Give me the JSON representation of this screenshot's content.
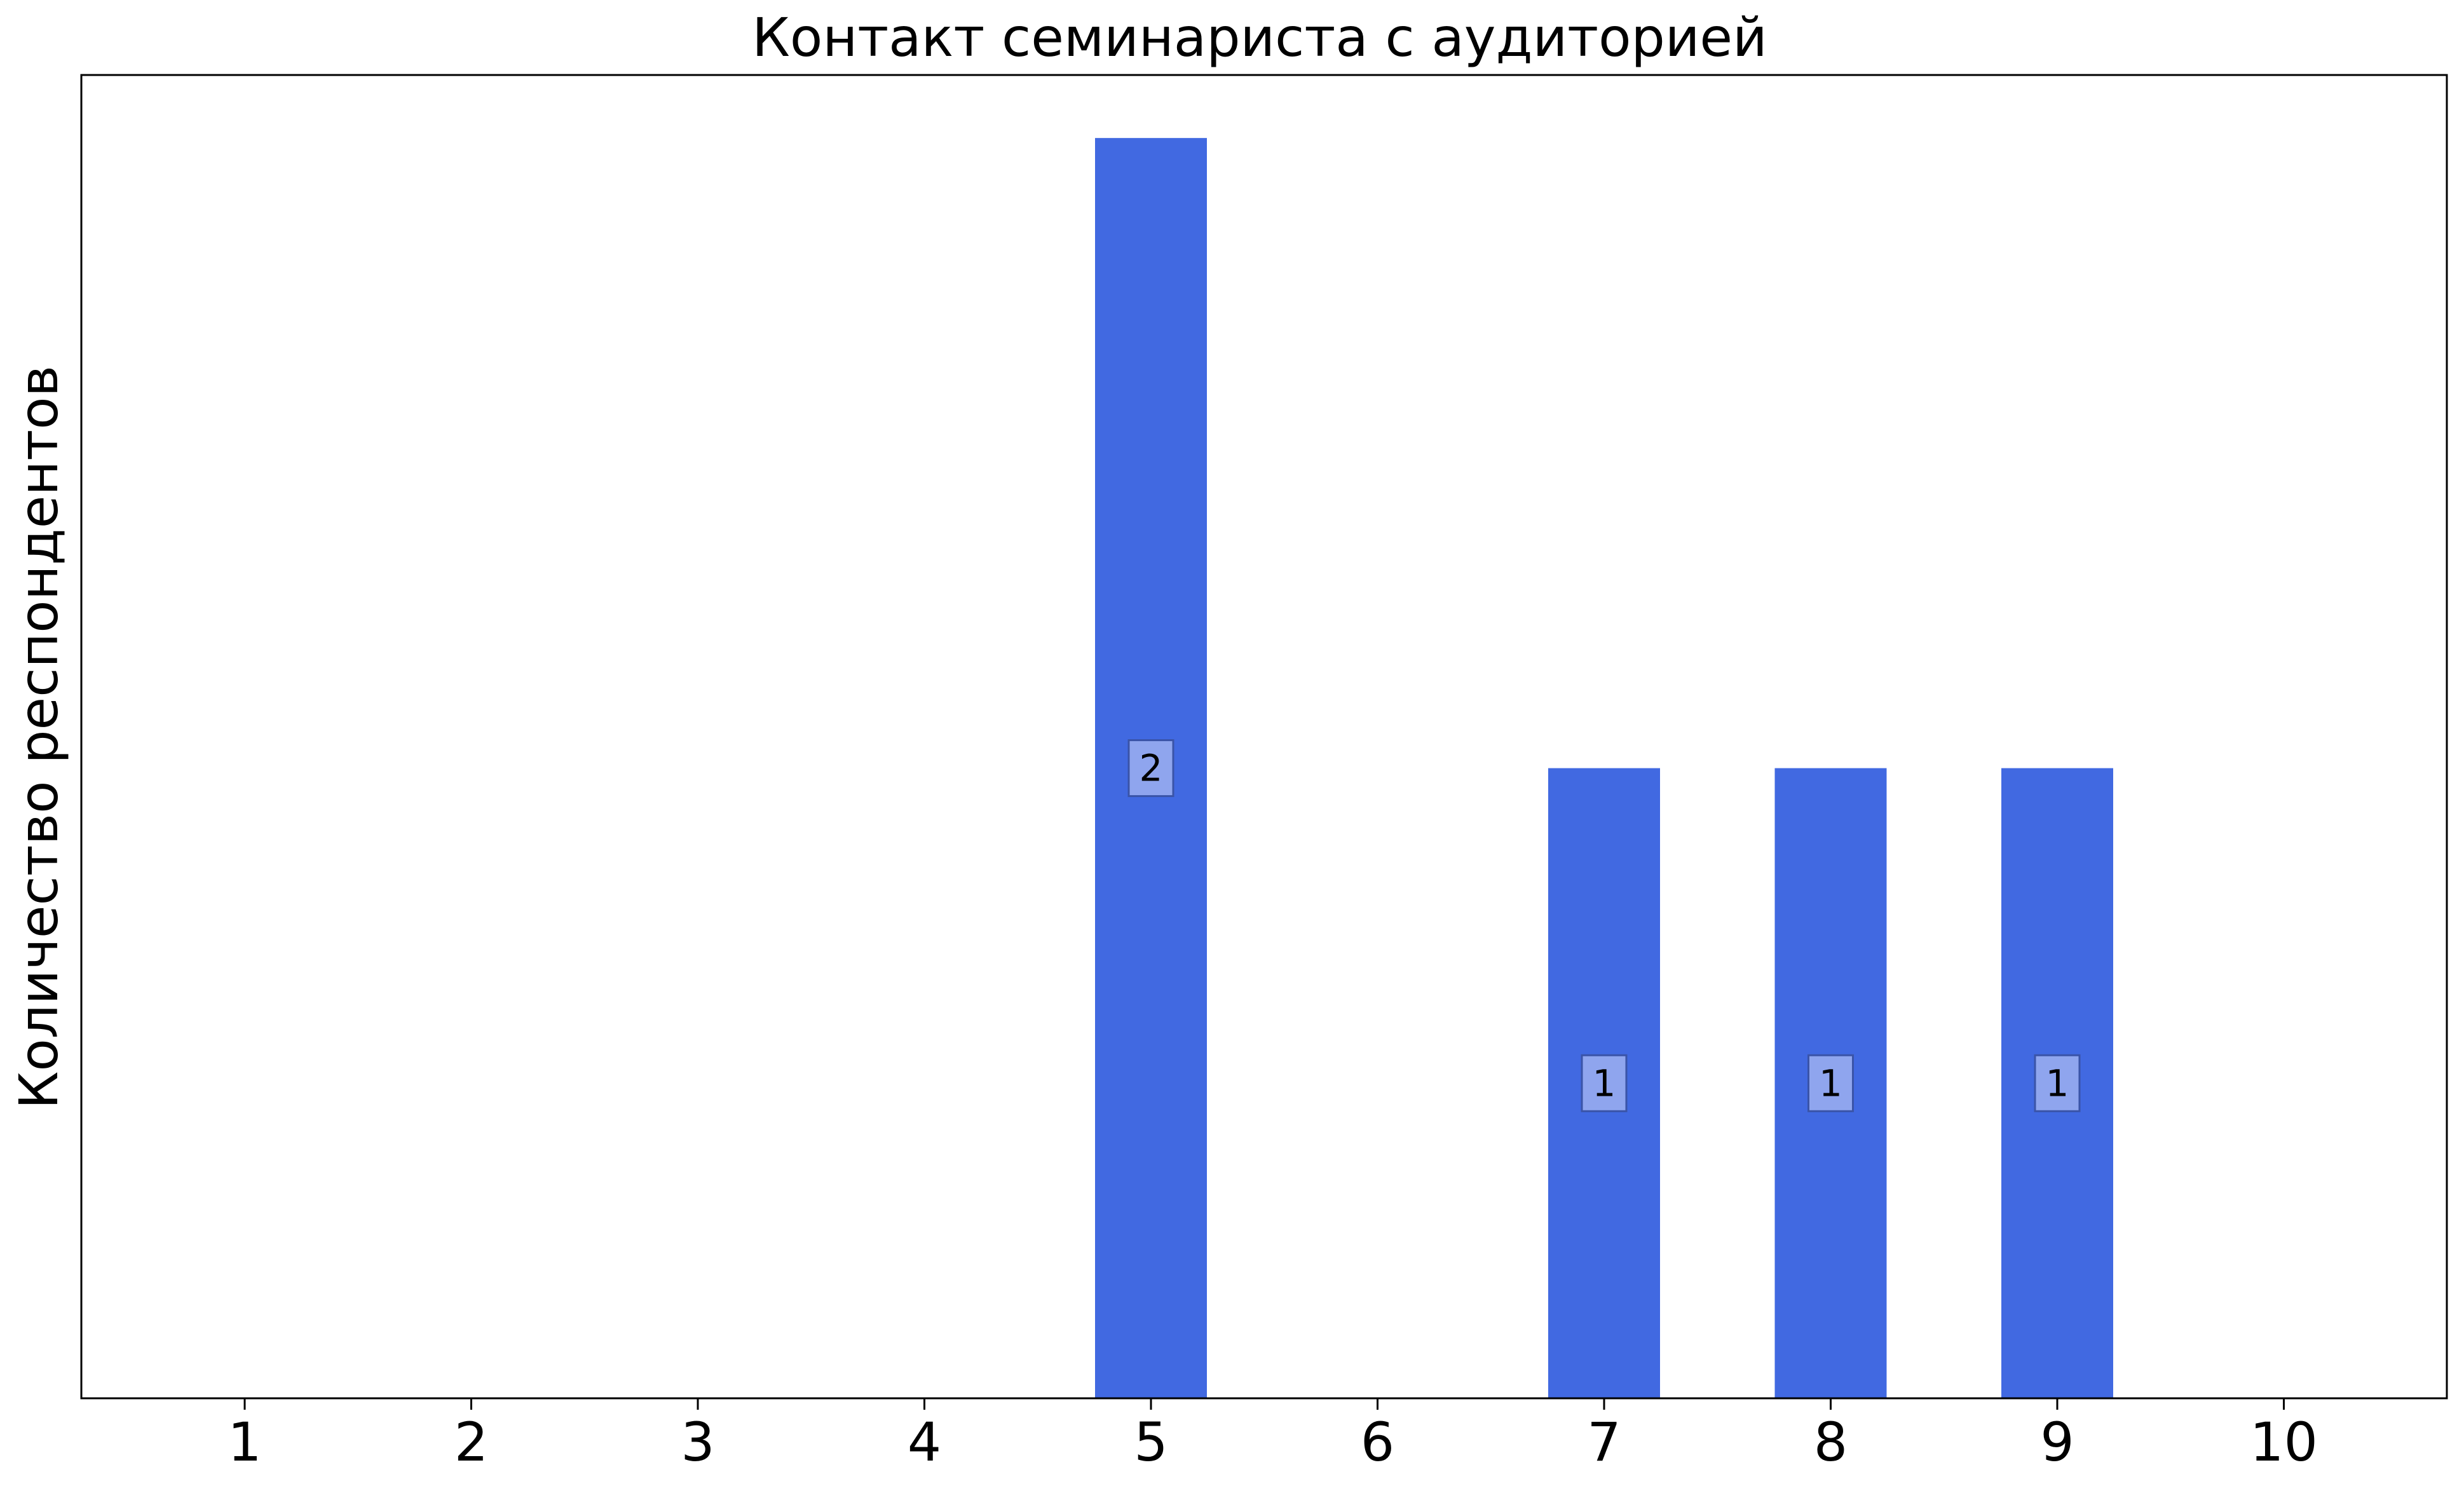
{
  "chart_data": {
    "type": "bar",
    "title": "Контакт семинариста с аудиторией",
    "xlabel": "",
    "ylabel": "Количество респондентов",
    "categories": [
      "1",
      "2",
      "3",
      "4",
      "5",
      "6",
      "7",
      "8",
      "9",
      "10"
    ],
    "values": [
      0,
      0,
      0,
      0,
      2,
      0,
      1,
      1,
      1,
      0
    ],
    "data_labels": [
      "",
      "",
      "",
      "",
      "2",
      "",
      "1",
      "1",
      "1",
      ""
    ],
    "ylim": [
      0,
      2.1
    ],
    "y_ticks_shown": false,
    "grid": false,
    "legend": "none",
    "colors": {
      "bar": "#4169e1",
      "label_box_fill": "#8fa5ee",
      "label_box_stroke": "#3a54a8",
      "axes": "#000000"
    }
  }
}
